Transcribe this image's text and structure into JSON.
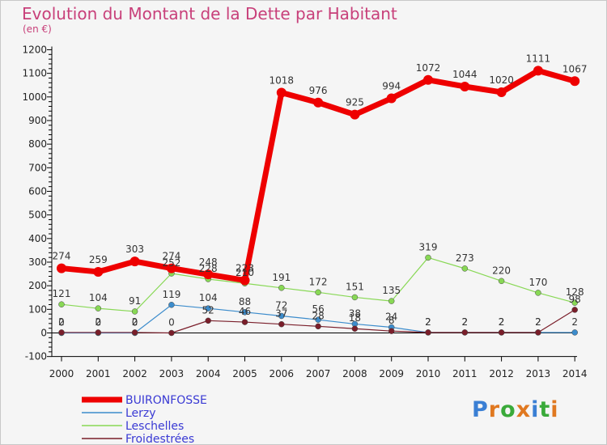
{
  "title": "Evolution du Montant de la Dette par Habitant",
  "subtitle": "(en €)",
  "logo": {
    "text": "Proxiti",
    "letters": [
      "P",
      "r",
      "o",
      "x",
      "i",
      "t",
      "i"
    ],
    "colors": [
      "#3a7fd4",
      "#e07820",
      "#3aaa3a",
      "#e07820",
      "#3a7fd4",
      "#3aaa3a",
      "#e07820"
    ]
  },
  "chart_data": {
    "type": "line",
    "title": "Evolution du Montant de la Dette par Habitant",
    "subtitle": "(en €)",
    "xlabel": "",
    "ylabel": "",
    "x": [
      "2000",
      "2001",
      "2002",
      "2003",
      "2004",
      "2005",
      "2006",
      "2007",
      "2008",
      "2009",
      "2010",
      "2011",
      "2012",
      "2013",
      "2014"
    ],
    "ylim": [
      -100,
      1200
    ],
    "yticks": [
      -100,
      0,
      100,
      200,
      300,
      400,
      500,
      600,
      700,
      800,
      900,
      1000,
      1100,
      1200
    ],
    "grid": false,
    "legend": "bottom-left",
    "series": [
      {
        "name": "BUIRONFOSSE",
        "color": "#ee0000",
        "values": [
          274,
          259,
          303,
          274,
          248,
          223,
          1018,
          976,
          925,
          994,
          1072,
          1044,
          1020,
          1111,
          1067
        ]
      },
      {
        "name": "Lerzy",
        "color": "#3c8ccc",
        "values": [
          0,
          0,
          0,
          119,
          104,
          88,
          72,
          56,
          38,
          24,
          2,
          2,
          2,
          2,
          2
        ]
      },
      {
        "name": "Leschelles",
        "color": "#88d855",
        "values": [
          121,
          104,
          91,
          252,
          228,
          210,
          191,
          172,
          151,
          135,
          319,
          273,
          220,
          170,
          128
        ]
      },
      {
        "name": "Froidestrées",
        "color": "#7a1e2a",
        "values": [
          2,
          2,
          2,
          0,
          52,
          46,
          37,
          28,
          18,
          8,
          2,
          2,
          2,
          2,
          98
        ]
      }
    ]
  }
}
